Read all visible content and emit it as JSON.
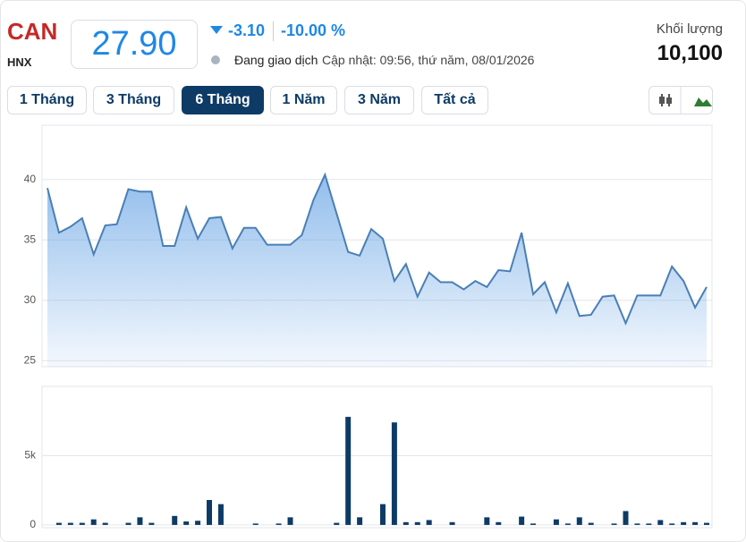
{
  "header": {
    "symbol": "CAN",
    "exchange": "HNX",
    "price": "27.90",
    "change": "-3.10",
    "change_percent": "-10.00 %",
    "status": "Đang giao dịch",
    "updated": "Cập nhật: 09:56, thứ năm, 08/01/2026",
    "volume_label": "Khối lượng",
    "volume": "10,100"
  },
  "ranges": {
    "items": [
      "1 Tháng",
      "3 Tháng",
      "6 Tháng",
      "1 Năm",
      "3 Năm",
      "Tất cả"
    ],
    "active": 2
  },
  "chart_data": [
    {
      "type": "area",
      "color": "#4a7fb5",
      "ylim": [
        24.5,
        44.5
      ],
      "yticks": [
        25,
        30,
        35,
        40
      ],
      "grid": true,
      "values": [
        39.3,
        35.6,
        36.1,
        36.8,
        33.8,
        36.2,
        36.3,
        39.2,
        39.0,
        39.0,
        34.5,
        34.5,
        37.7,
        35.1,
        36.8,
        36.9,
        34.3,
        36.0,
        36.0,
        34.6,
        34.6,
        34.6,
        35.4,
        38.3,
        40.4,
        37.2,
        34.0,
        33.7,
        35.9,
        35.1,
        31.6,
        33.0,
        30.3,
        32.3,
        31.5,
        31.5,
        30.9,
        31.6,
        31.1,
        32.5,
        32.4,
        35.6,
        30.5,
        31.5,
        29.0,
        31.4,
        28.7,
        28.8,
        30.3,
        30.4,
        28.1,
        30.4,
        30.4,
        30.4,
        32.8,
        31.6,
        29.4,
        31.1
      ]
    },
    {
      "type": "bar",
      "color": "#0d3b66",
      "ylim": [
        -200,
        10000
      ],
      "yticks": [
        0,
        {
          "value": 5000,
          "label": "5k"
        }
      ],
      "grid": true,
      "values": [
        0,
        150,
        150,
        150,
        400,
        150,
        0,
        150,
        550,
        150,
        0,
        650,
        250,
        300,
        1800,
        1500,
        0,
        0,
        100,
        0,
        100,
        550,
        0,
        0,
        0,
        150,
        7800,
        550,
        0,
        1500,
        7400,
        200,
        200,
        350,
        0,
        200,
        0,
        0,
        550,
        200,
        0,
        600,
        100,
        0,
        400,
        100,
        550,
        150,
        0,
        100,
        1000,
        100,
        100,
        350,
        100,
        200,
        200,
        150
      ]
    }
  ]
}
